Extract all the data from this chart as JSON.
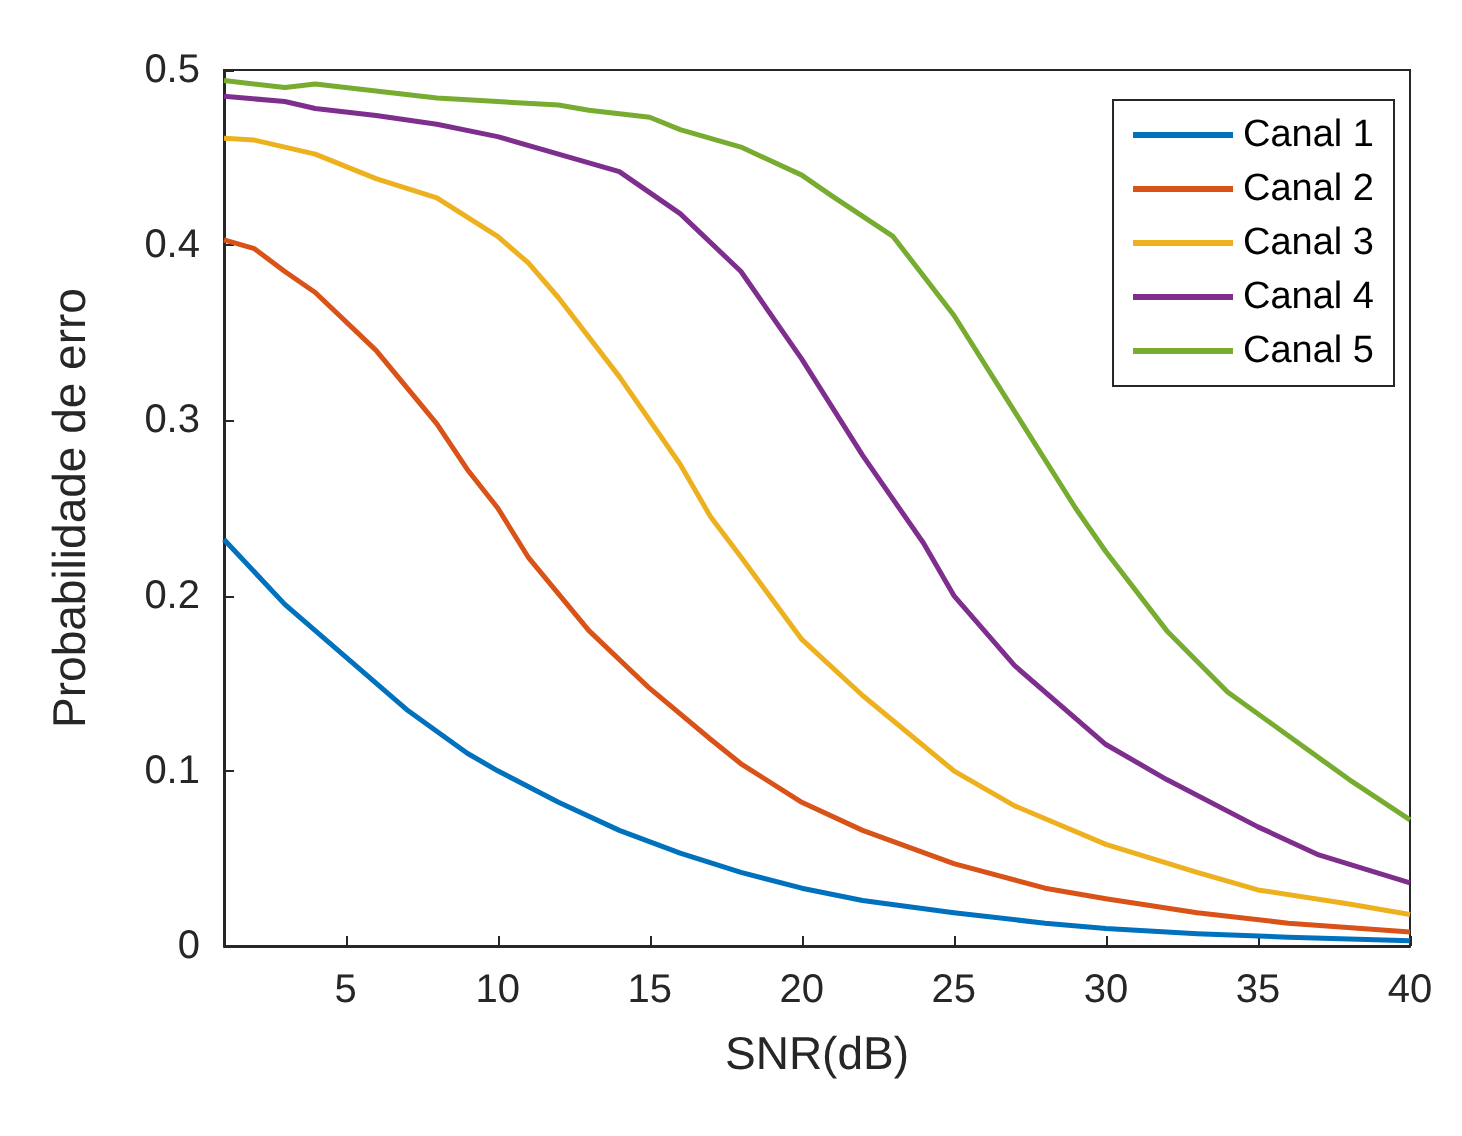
{
  "chart_data": {
    "type": "line",
    "xlabel": "SNR(dB)",
    "ylabel": "Probabilidade de erro",
    "xlim": [
      1,
      40
    ],
    "xticks": [
      5,
      10,
      15,
      20,
      25,
      30,
      35,
      40
    ],
    "ylim": [
      0,
      0.5
    ],
    "yticks": [
      0,
      0.1,
      0.2,
      0.3,
      0.4,
      0.5
    ],
    "grid": false,
    "legend": "top right",
    "marker": "none",
    "line_style": "solid",
    "series": [
      {
        "name": "Canal 1",
        "color": "#0072bd",
        "x": [
          1,
          3,
          5,
          7,
          9,
          10,
          12,
          14,
          16,
          18,
          20,
          22,
          25,
          28,
          30,
          33,
          36,
          40
        ],
        "values": [
          0.232,
          0.195,
          0.165,
          0.135,
          0.11,
          0.1,
          0.082,
          0.066,
          0.053,
          0.042,
          0.033,
          0.026,
          0.019,
          0.013,
          0.01,
          0.007,
          0.005,
          0.003
        ]
      },
      {
        "name": "Canal 2",
        "color": "#d95319",
        "x": [
          1,
          2,
          3,
          4,
          6,
          8,
          9,
          10,
          11,
          13,
          15,
          17,
          18,
          20,
          22,
          25,
          28,
          30,
          33,
          36,
          40
        ],
        "values": [
          0.403,
          0.398,
          0.385,
          0.373,
          0.34,
          0.298,
          0.272,
          0.25,
          0.222,
          0.18,
          0.147,
          0.118,
          0.104,
          0.082,
          0.066,
          0.047,
          0.033,
          0.027,
          0.019,
          0.013,
          0.008
        ]
      },
      {
        "name": "Canal 3",
        "color": "#edb120",
        "x": [
          1,
          2,
          4,
          6,
          8,
          10,
          11,
          12,
          14,
          16,
          17,
          18,
          20,
          22,
          25,
          27,
          30,
          33,
          35,
          38,
          40
        ],
        "values": [
          0.461,
          0.46,
          0.452,
          0.438,
          0.427,
          0.405,
          0.39,
          0.37,
          0.325,
          0.275,
          0.245,
          0.222,
          0.175,
          0.143,
          0.1,
          0.08,
          0.058,
          0.042,
          0.032,
          0.024,
          0.018
        ]
      },
      {
        "name": "Canal 4",
        "color": "#7e2f8e",
        "x": [
          1,
          3,
          4,
          6,
          8,
          10,
          12,
          14,
          16,
          18,
          20,
          22,
          24,
          25,
          27,
          30,
          32,
          35,
          37,
          40
        ],
        "values": [
          0.485,
          0.482,
          0.478,
          0.474,
          0.469,
          0.462,
          0.452,
          0.442,
          0.418,
          0.385,
          0.335,
          0.28,
          0.23,
          0.2,
          0.16,
          0.115,
          0.095,
          0.068,
          0.052,
          0.036
        ]
      },
      {
        "name": "Canal 5",
        "color": "#77ac30",
        "x": [
          1,
          3,
          4,
          6,
          8,
          10,
          12,
          13,
          15,
          16,
          18,
          20,
          21,
          23,
          25,
          27,
          29,
          30,
          32,
          34,
          36,
          38,
          40
        ],
        "values": [
          0.494,
          0.49,
          0.492,
          0.488,
          0.484,
          0.482,
          0.48,
          0.477,
          0.473,
          0.466,
          0.456,
          0.44,
          0.428,
          0.405,
          0.36,
          0.305,
          0.25,
          0.225,
          0.18,
          0.145,
          0.12,
          0.095,
          0.072
        ]
      }
    ]
  }
}
